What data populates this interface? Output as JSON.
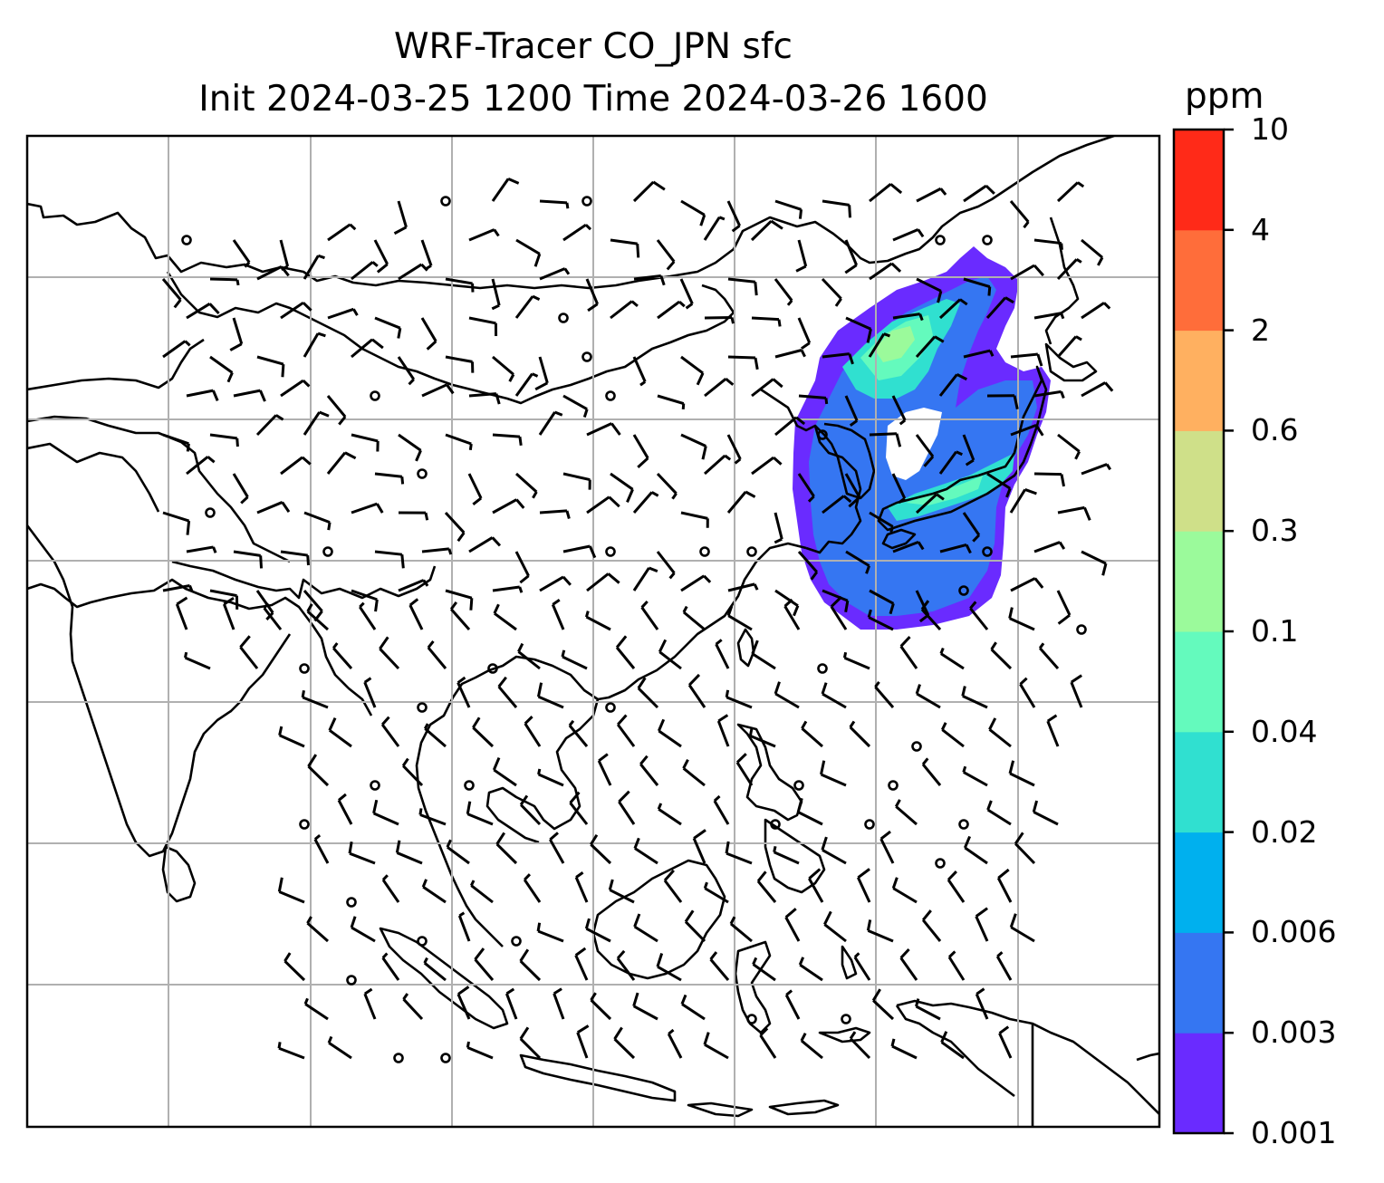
{
  "title": {
    "line1": "WRF-Tracer CO_JPN sfc",
    "line2": "Init 2024-03-25 1200 Time 2024-03-26 1600"
  },
  "colorbar": {
    "unit": "ppm",
    "levels": [
      "0.001",
      "0.003",
      "0.006",
      "0.02",
      "0.04",
      "0.1",
      "0.3",
      "0.6",
      "2",
      "4",
      "10"
    ],
    "colors": [
      "#6a2bff",
      "#3576f2",
      "#00b0ee",
      "#30e0d0",
      "#64fabd",
      "#9bfa9b",
      "#cfe089",
      "#ffb060",
      "#ff6d3a",
      "#ff2a18"
    ]
  },
  "map": {
    "variable": "CO tracer (JPN) surface concentration with wind barbs",
    "grid_lines": true,
    "plume_colors": [
      "#6a2bff",
      "#3576f2",
      "#30e0d0",
      "#64fabd",
      "#9bfa9b"
    ]
  }
}
